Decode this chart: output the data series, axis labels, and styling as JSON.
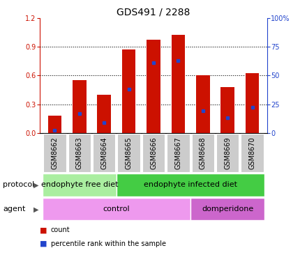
{
  "title": "GDS491 / 2288",
  "samples": [
    "GSM8662",
    "GSM8663",
    "GSM8664",
    "GSM8665",
    "GSM8666",
    "GSM8667",
    "GSM8668",
    "GSM8669",
    "GSM8670"
  ],
  "counts": [
    0.18,
    0.55,
    0.4,
    0.87,
    0.97,
    1.02,
    0.6,
    0.48,
    0.62
  ],
  "percentile_ranks_pct": [
    2,
    17,
    9,
    38,
    61,
    63,
    19,
    13,
    22
  ],
  "ylim_left": [
    0,
    1.2
  ],
  "ylim_right": [
    0,
    100
  ],
  "yticks_left": [
    0,
    0.3,
    0.6,
    0.9,
    1.2
  ],
  "yticks_right": [
    0,
    25,
    50,
    75,
    100
  ],
  "bar_color": "#cc1100",
  "dot_color": "#2244cc",
  "bg_color": "#ffffff",
  "protocol_groups": [
    {
      "label": "endophyte free diet",
      "start": 0,
      "end": 3,
      "color": "#aaeea0"
    },
    {
      "label": "endophyte infected diet",
      "start": 3,
      "end": 9,
      "color": "#44cc44"
    }
  ],
  "agent_groups": [
    {
      "label": "control",
      "start": 0,
      "end": 6,
      "color": "#ee99ee"
    },
    {
      "label": "domperidone",
      "start": 6,
      "end": 9,
      "color": "#cc66cc"
    }
  ],
  "protocol_label": "protocol",
  "agent_label": "agent",
  "legend_count_label": "count",
  "legend_pct_label": "percentile rank within the sample",
  "left_axis_color": "#cc1100",
  "right_axis_color": "#2244cc",
  "tick_bg_color": "#cccccc",
  "bar_width": 0.55,
  "title_fontsize": 10,
  "tick_fontsize": 7,
  "label_fontsize": 8,
  "row_fontsize": 8
}
